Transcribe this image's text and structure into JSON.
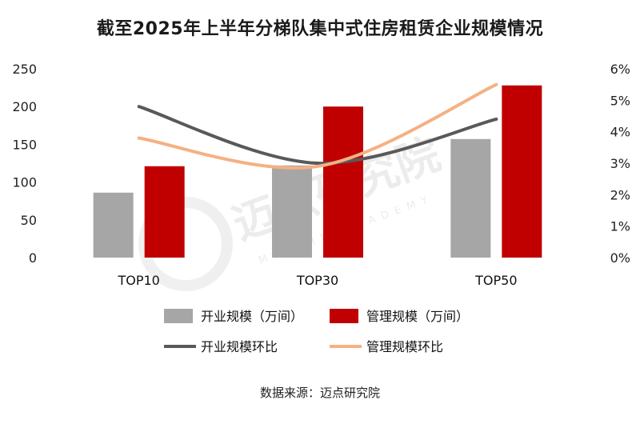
{
  "title": "截至2025年上半年分梯队集中式住房租赁企业规模情况",
  "source": "数据来源：迈点研究院",
  "watermark": {
    "main": "迈点研究院",
    "sub": "MEADIN ACADEMY"
  },
  "colors": {
    "open_bar": "#a6a6a6",
    "managed_bar": "#c00000",
    "open_line": "#595959",
    "managed_line": "#f4b183"
  },
  "chart_data": {
    "type": "bar",
    "categories": [
      "TOP10",
      "TOP30",
      "TOP50"
    ],
    "ylim": [
      0,
      250
    ],
    "yticks": [
      0,
      50,
      100,
      150,
      200,
      250
    ],
    "y2lim": [
      0,
      0.06
    ],
    "y2ticks": [
      "0%",
      "1%",
      "2%",
      "3%",
      "4%",
      "5%",
      "6%"
    ],
    "series": [
      {
        "name": "开业规模（万间）",
        "kind": "bar",
        "axis": "left",
        "values": [
          86,
          122,
          157
        ]
      },
      {
        "name": "管理规模（万间）",
        "kind": "bar",
        "axis": "left",
        "values": [
          121,
          200,
          228
        ]
      },
      {
        "name": "开业规模环比",
        "kind": "line",
        "axis": "right",
        "values": [
          0.048,
          0.03,
          0.044
        ]
      },
      {
        "name": "管理规模环比",
        "kind": "line",
        "axis": "right",
        "values": [
          0.038,
          0.029,
          0.055
        ]
      }
    ]
  }
}
